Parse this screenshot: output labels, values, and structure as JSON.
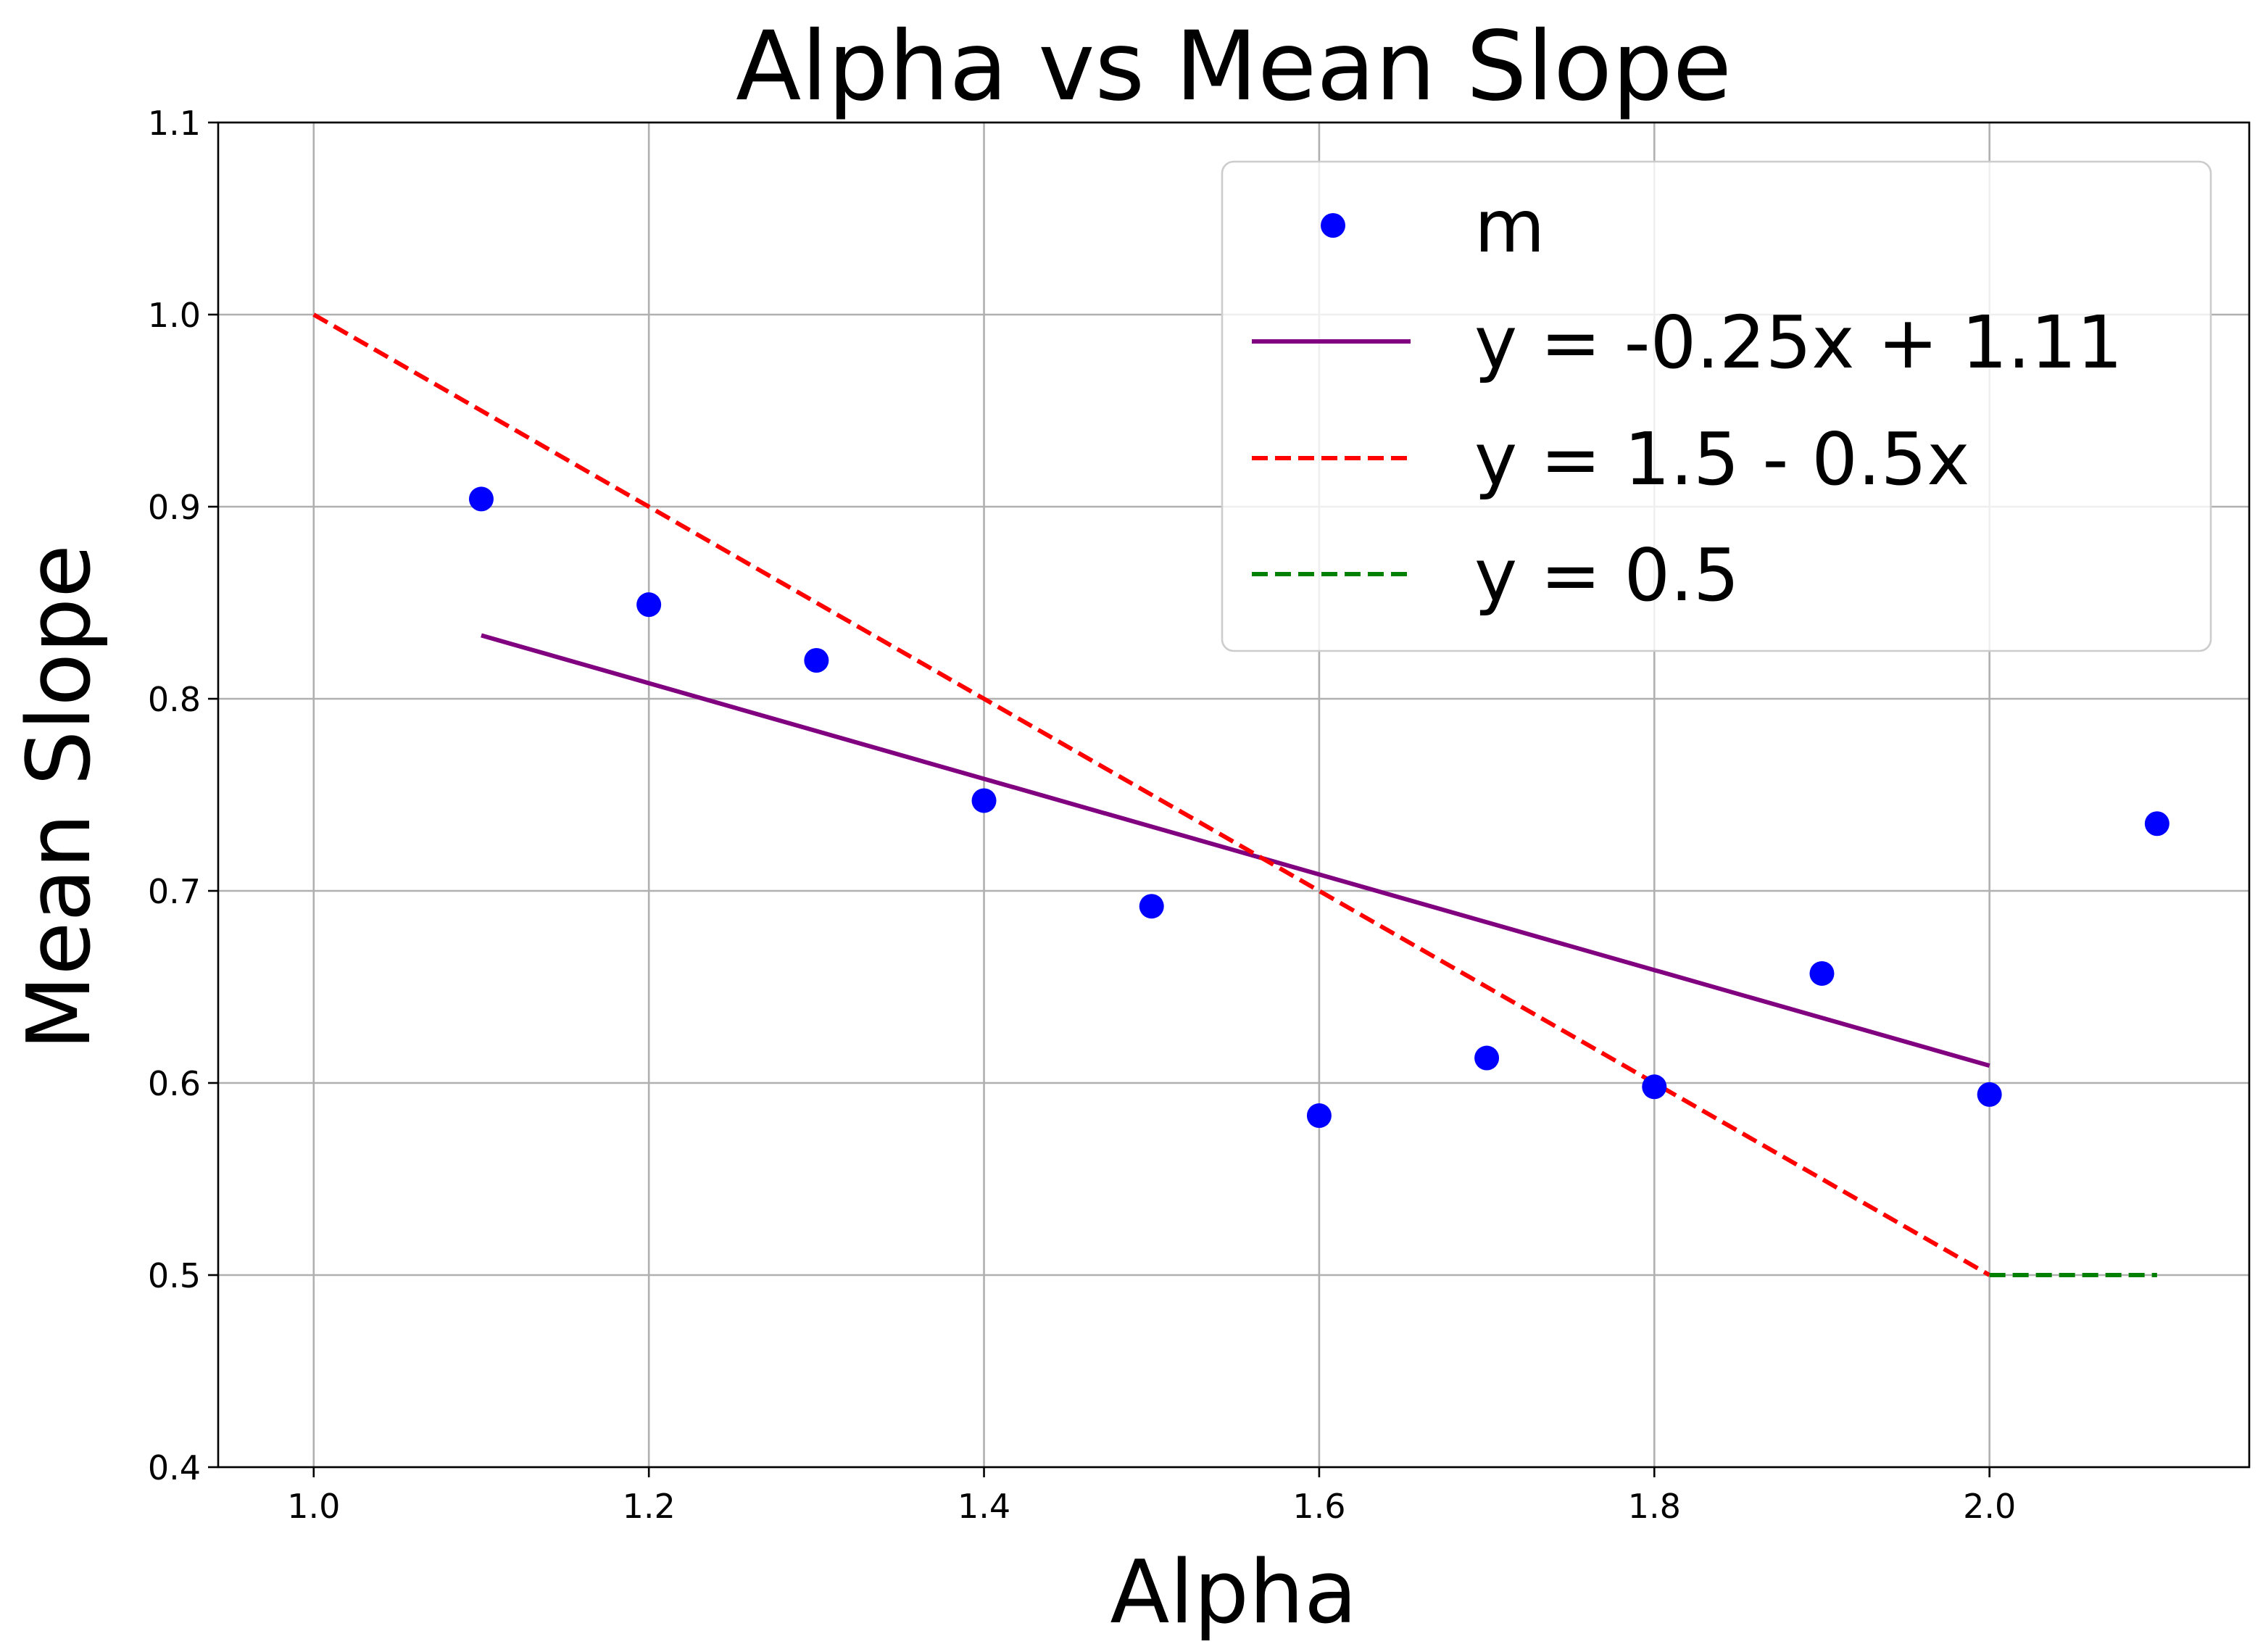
{
  "chart_data": {
    "type": "scatter",
    "title": "Alpha vs Mean Slope",
    "xlabel": "Alpha",
    "ylabel": "Mean Slope",
    "xlim": [
      0.943,
      2.155
    ],
    "ylim": [
      0.4,
      1.1
    ],
    "grid": true,
    "legend_position": "top-right",
    "x_ticks": [
      1.0,
      1.2,
      1.4,
      1.6,
      1.8,
      2.0
    ],
    "x_tick_labels": [
      "1.0",
      "1.2",
      "1.4",
      "1.6",
      "1.8",
      "2.0"
    ],
    "y_ticks": [
      0.4,
      0.5,
      0.6,
      0.7,
      0.8,
      0.9,
      1.0,
      1.1
    ],
    "y_tick_labels": [
      "0.4",
      "0.5",
      "0.6",
      "0.7",
      "0.8",
      "0.9",
      "1.0",
      "1.1"
    ],
    "series": [
      {
        "name": "m",
        "kind": "scatter",
        "color": "#0000ff",
        "x": [
          1.1,
          1.2,
          1.3,
          1.4,
          1.5,
          1.6,
          1.7,
          1.8,
          1.9,
          2.0,
          2.1
        ],
        "y": [
          0.904,
          0.849,
          0.82,
          0.747,
          0.692,
          0.583,
          0.613,
          0.598,
          0.657,
          0.594,
          0.735
        ]
      },
      {
        "name": "y = -0.25x + 1.11",
        "kind": "line",
        "style": "solid",
        "color": "#800080",
        "x": [
          1.1,
          2.0
        ],
        "y": [
          0.833,
          0.609
        ]
      },
      {
        "name": "y = 1.5 - 0.5x",
        "kind": "line",
        "style": "dashed",
        "color": "#ff0000",
        "x": [
          1.0,
          2.0
        ],
        "y": [
          1.0,
          0.5
        ]
      },
      {
        "name": "y = 0.5",
        "kind": "line",
        "style": "dashed",
        "color": "#008000",
        "x": [
          2.0,
          2.1
        ],
        "y": [
          0.5,
          0.5
        ]
      }
    ]
  }
}
